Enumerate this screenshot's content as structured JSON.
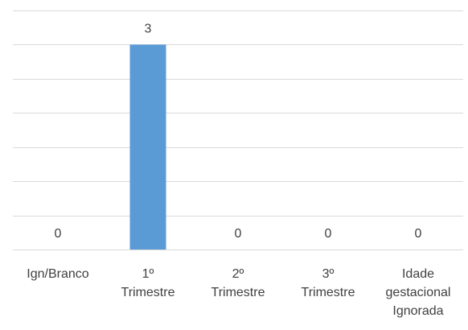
{
  "chart_data": {
    "type": "bar",
    "title": "",
    "xlabel": "",
    "ylabel": "",
    "categories": [
      [
        "Ign/Branco"
      ],
      [
        "1º",
        "Trimestre"
      ],
      [
        "2º",
        "Trimestre"
      ],
      [
        "3º",
        "Trimestre"
      ],
      [
        "Idade",
        "gestacional",
        "Ignorada"
      ]
    ],
    "values": [
      0,
      3,
      0,
      0,
      0
    ],
    "data_labels": [
      "0",
      "3",
      "0",
      "0",
      "0"
    ],
    "ylim": [
      0,
      3.5
    ],
    "grid": true,
    "legend": "none",
    "bar_color": "#5b9bd5",
    "grid_color": "#d9d9d9",
    "text_color": "#404040"
  }
}
